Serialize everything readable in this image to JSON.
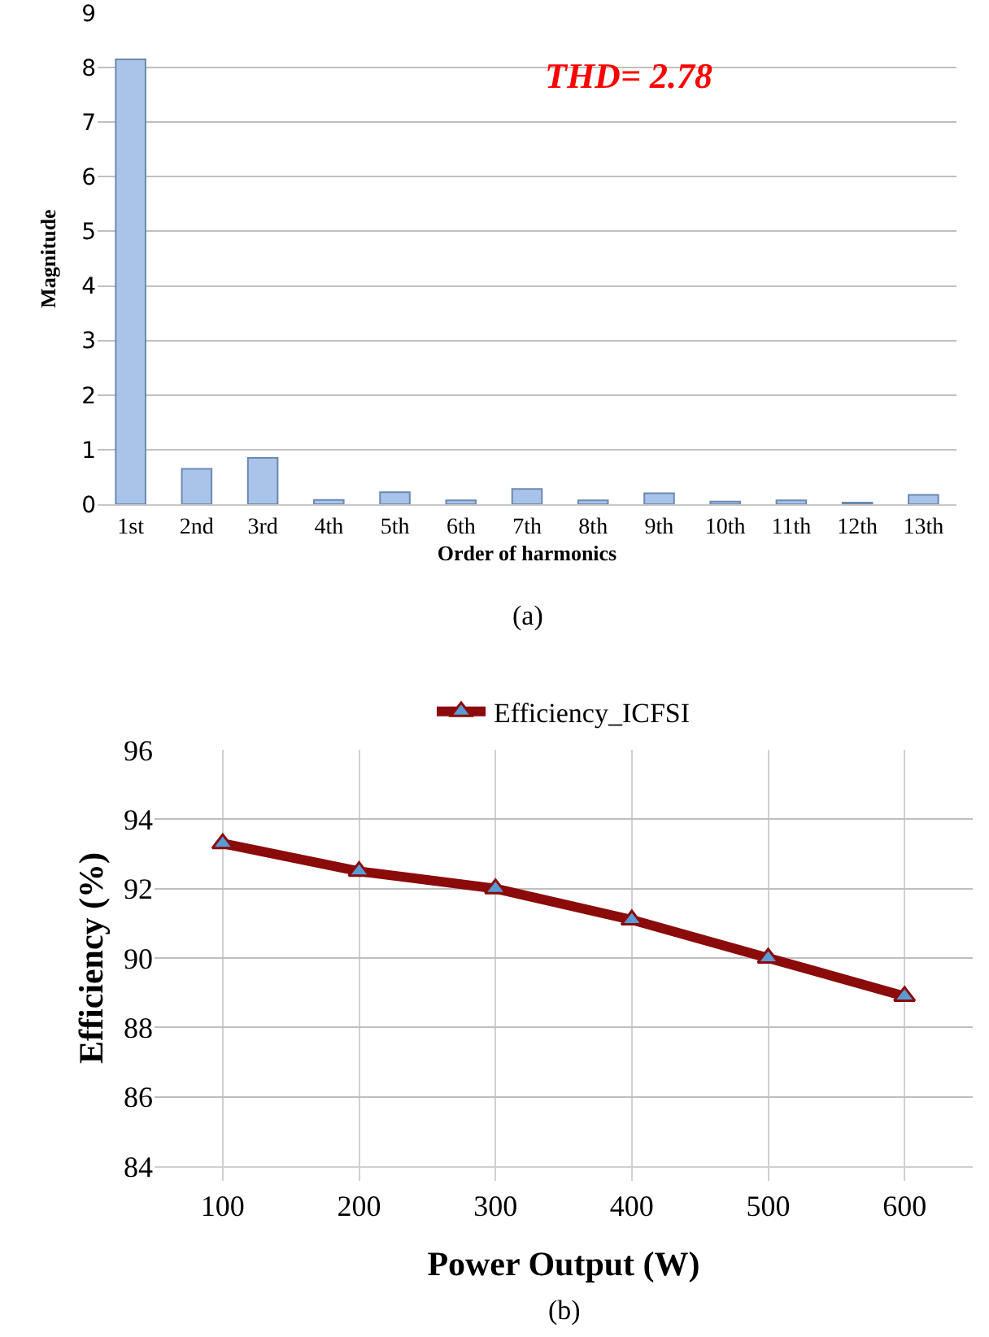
{
  "chart_data": [
    {
      "type": "bar",
      "categories": [
        "1st",
        "2nd",
        "3rd",
        "4th",
        "5th",
        "6th",
        "7th",
        "8th",
        "9th",
        "10th",
        "11th",
        "12th",
        "13th"
      ],
      "values": [
        8.15,
        0.65,
        0.85,
        0.08,
        0.22,
        0.07,
        0.28,
        0.07,
        0.2,
        0.05,
        0.07,
        0.03,
        0.17
      ],
      "color": "#a9c4e8",
      "xlabel": "Order of harmonics",
      "ylabel": "Magnitude",
      "ylim": [
        0,
        9
      ],
      "yticks": [
        0,
        1,
        2,
        3,
        4,
        5,
        6,
        7,
        8,
        9
      ],
      "grid": "y",
      "annotations": [
        "THD= 2.78",
        "(a)"
      ]
    },
    {
      "type": "line",
      "categories": [
        "100",
        "200",
        "300",
        "400",
        "500",
        "600"
      ],
      "series": [
        {
          "name": "Efficiency_ICFSI",
          "color": "#8b0a0a",
          "values": [
            93.3,
            92.5,
            92.0,
            91.1,
            90.0,
            88.9
          ]
        }
      ],
      "xlabel": "Power Output (W)",
      "ylabel": "Efficiency (%)",
      "ylim": [
        84,
        96
      ],
      "yticks": [
        84,
        86,
        88,
        90,
        92,
        94,
        96
      ],
      "grid": true,
      "legend": "top",
      "marker": "triangle",
      "line_style": "solid",
      "annotations": [
        "(b)"
      ]
    }
  ]
}
